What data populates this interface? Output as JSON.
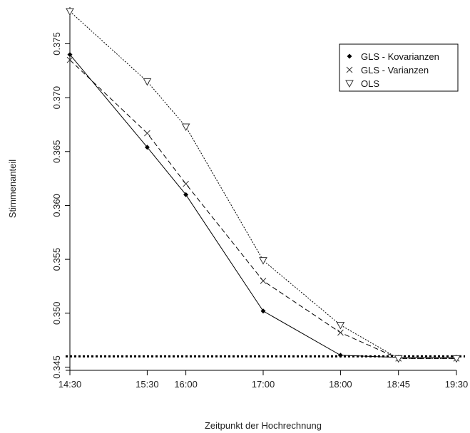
{
  "chart_data": {
    "type": "line",
    "xlabel": "Zeitpunkt der Hochrechnung",
    "ylabel": "Stimmenanteil",
    "x_ticks": [
      {
        "value": 0,
        "label": "14:30"
      },
      {
        "value": 60,
        "label": "15:30"
      },
      {
        "value": 90,
        "label": "16:00"
      },
      {
        "value": 150,
        "label": "17:00"
      },
      {
        "value": 210,
        "label": "18:00"
      },
      {
        "value": 255,
        "label": "18:45"
      },
      {
        "value": 300,
        "label": "19:30"
      }
    ],
    "xlim": [
      0,
      300
    ],
    "y_ticks": [
      {
        "value": 0.345,
        "label": "0.345"
      },
      {
        "value": 0.35,
        "label": "0.350"
      },
      {
        "value": 0.355,
        "label": "0.355"
      },
      {
        "value": 0.36,
        "label": "0.360"
      },
      {
        "value": 0.365,
        "label": "0.365"
      },
      {
        "value": 0.37,
        "label": "0.370"
      },
      {
        "value": 0.375,
        "label": "0.375"
      }
    ],
    "ylim": [
      0.3447,
      0.3784
    ],
    "reference_line": {
      "value": 0.346,
      "style": "dotted"
    },
    "legend_position": "top-right",
    "series": [
      {
        "name": "GLS - Kovarianzen",
        "marker": "filled-diamond",
        "line": "solid",
        "x": [
          0,
          60,
          90,
          150,
          210,
          255,
          300
        ],
        "y": [
          0.374,
          0.3654,
          0.361,
          0.3502,
          0.3461,
          0.3459,
          0.3459
        ]
      },
      {
        "name": "GLS - Varianzen",
        "marker": "cross",
        "line": "dashed",
        "x": [
          0,
          60,
          90,
          150,
          210,
          255,
          300
        ],
        "y": [
          0.3735,
          0.3667,
          0.362,
          0.353,
          0.3482,
          0.3458,
          0.3458
        ]
      },
      {
        "name": "OLS",
        "marker": "open-triangle-down",
        "line": "dotted",
        "x": [
          0,
          60,
          90,
          150,
          210,
          255,
          300
        ],
        "y": [
          0.378,
          0.3715,
          0.3673,
          0.3549,
          0.3489,
          0.3458,
          0.3458
        ]
      }
    ]
  }
}
